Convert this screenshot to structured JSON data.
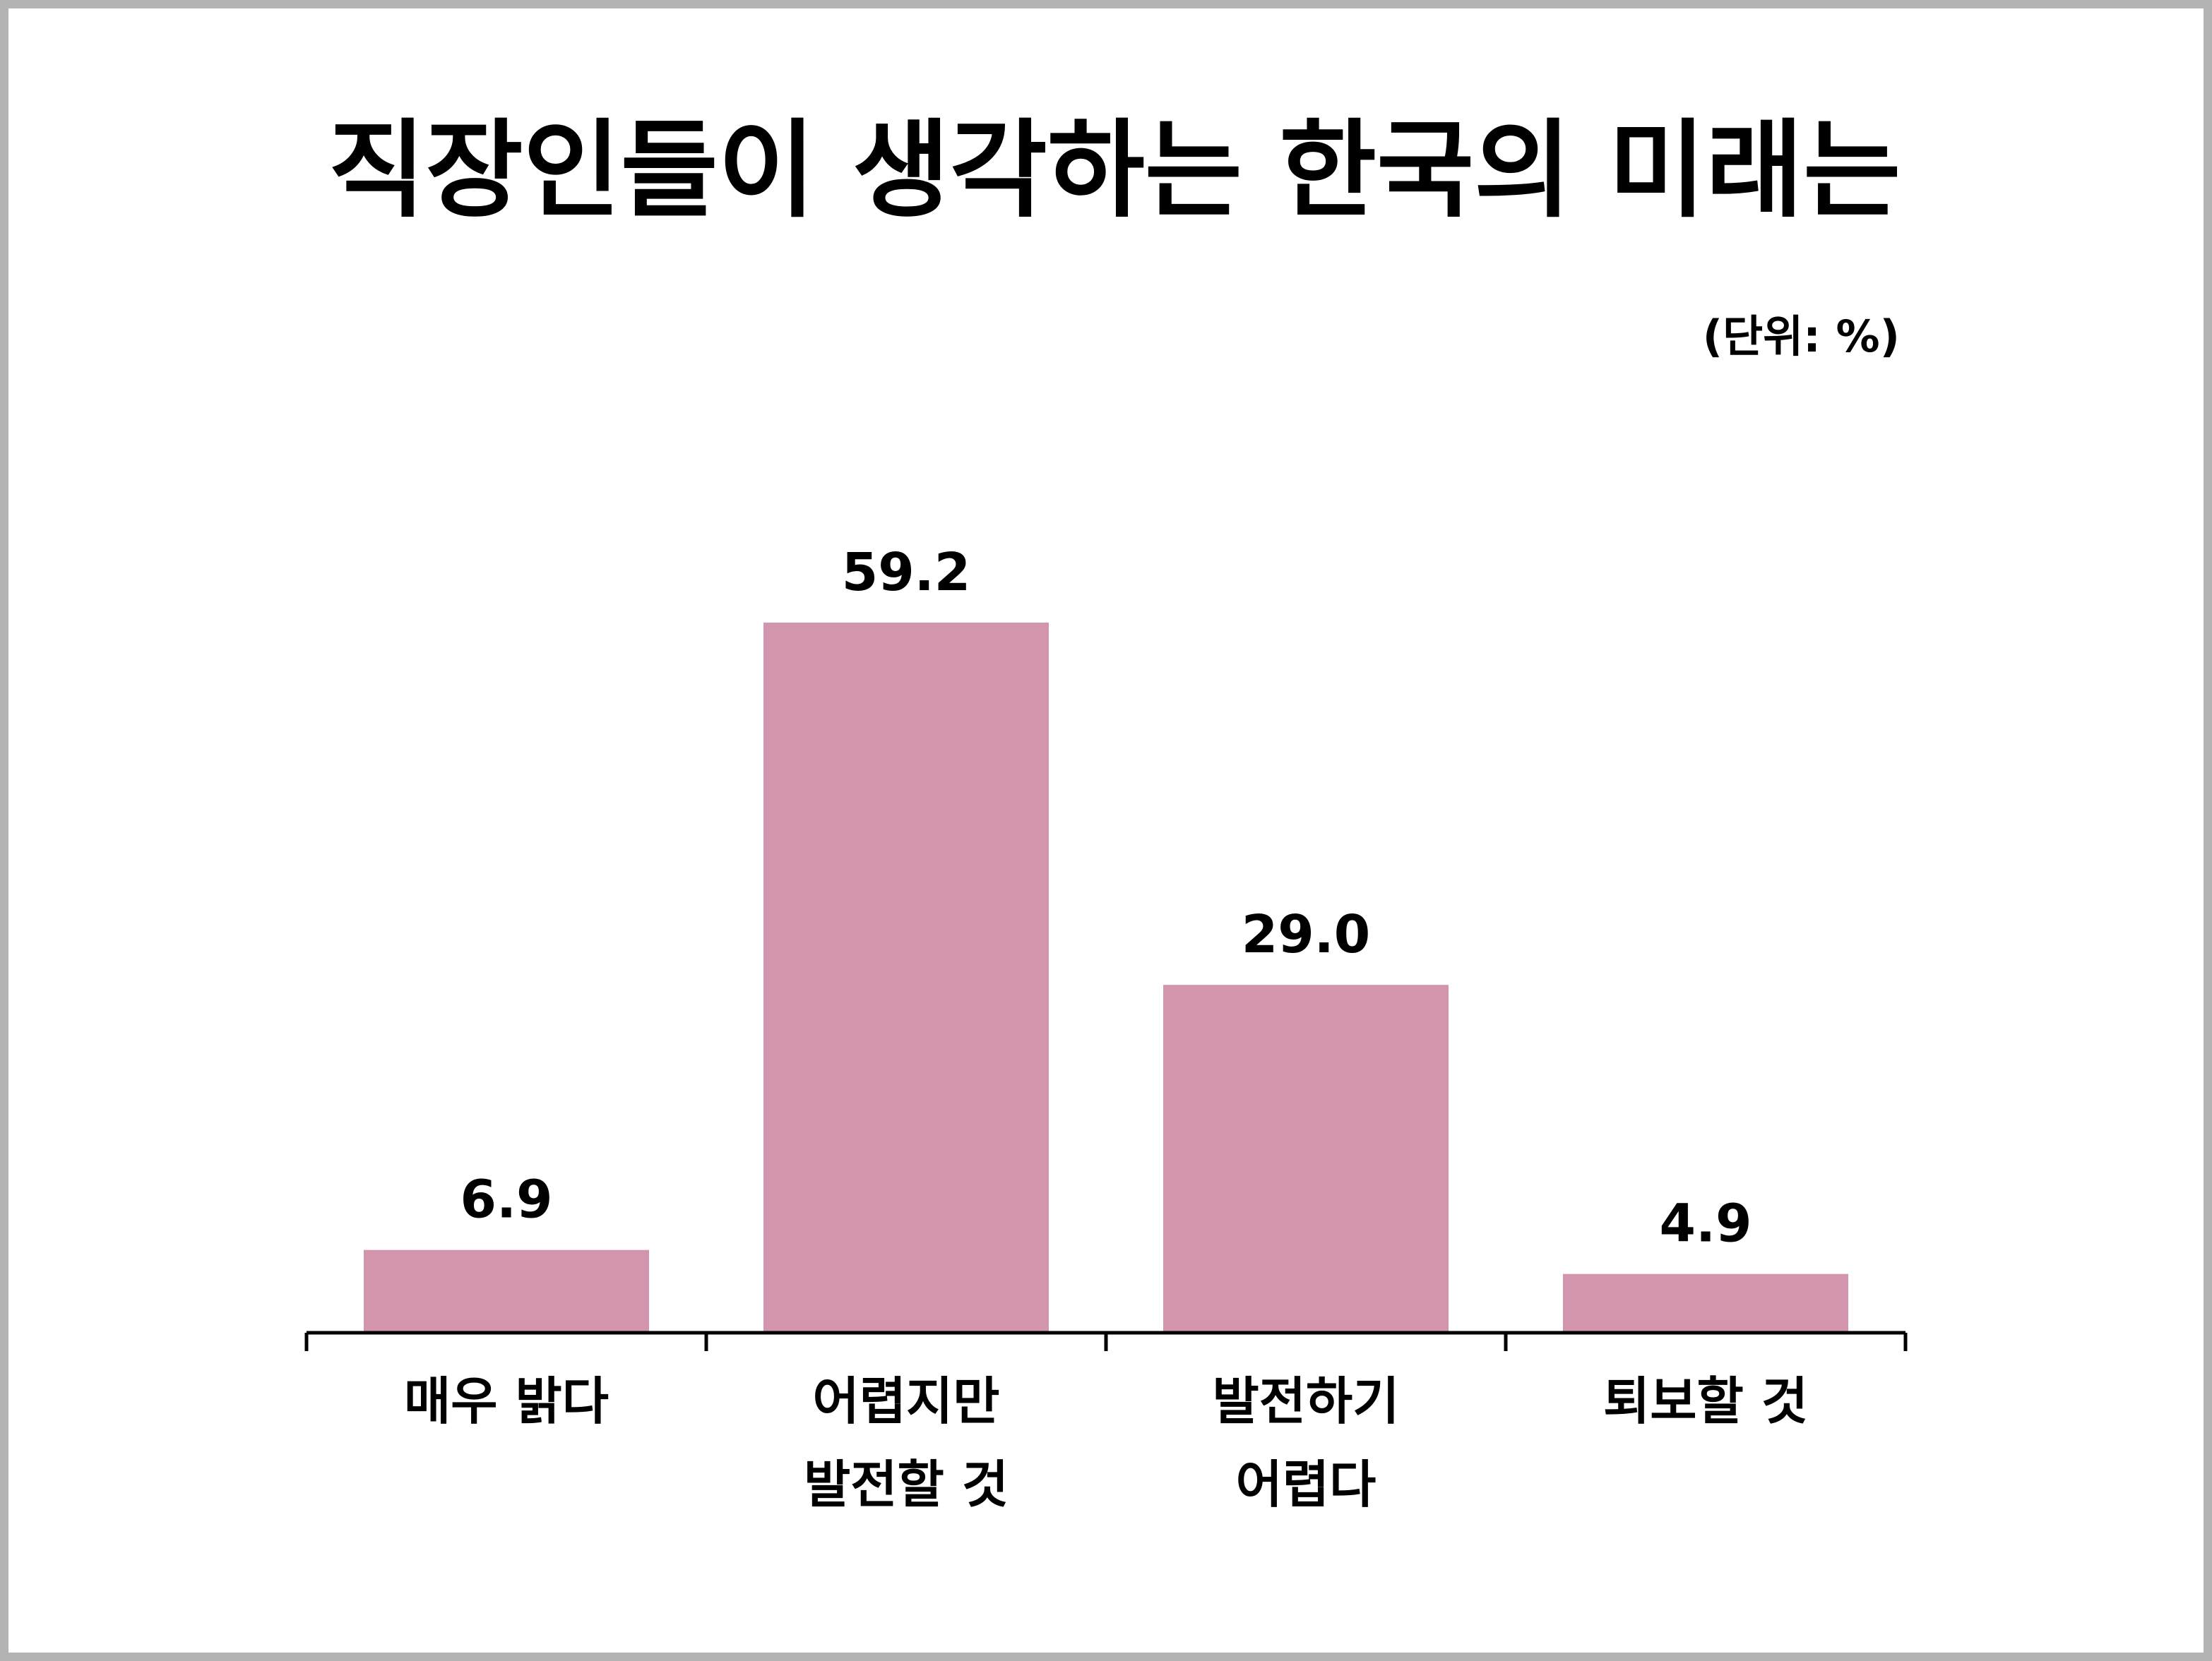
{
  "chart_data": {
    "type": "bar",
    "title": "직장인들이 생각하는 한국의 미래는",
    "unit_label": "(단위: %)",
    "categories": [
      [
        "매우 밝다"
      ],
      [
        "어렵지만",
        "발전할 것"
      ],
      [
        "발전하기",
        "어렵다"
      ],
      [
        "퇴보할 것"
      ]
    ],
    "values": [
      6.9,
      59.2,
      29.0,
      4.9
    ],
    "value_labels": [
      "6.9",
      "59.2",
      "29.0",
      "4.9"
    ],
    "bar_color": "#d394ad",
    "ylim": [
      0,
      100
    ],
    "grid": false,
    "legend": "none"
  }
}
